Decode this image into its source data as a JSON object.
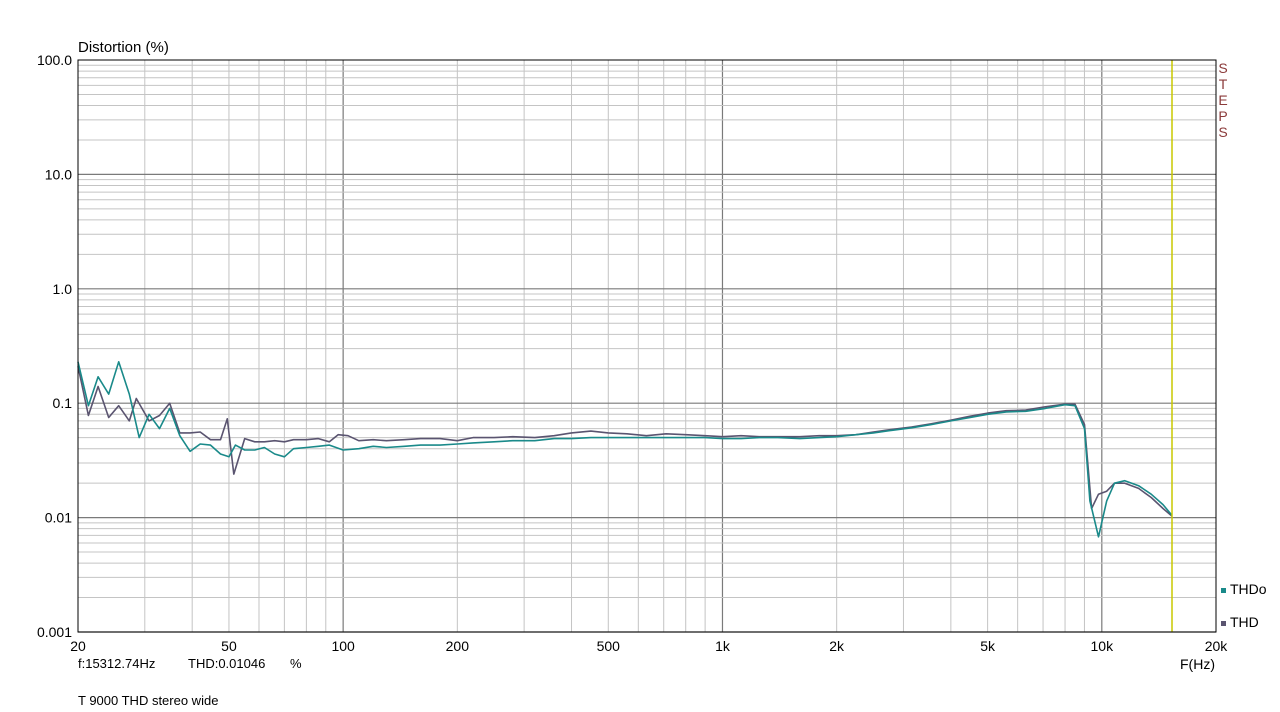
{
  "chart_data": {
    "type": "line",
    "title": "",
    "ylabel": "Distortion (%)",
    "xlabel": "F(Hz)",
    "xscale": "log",
    "yscale": "log",
    "xlim": [
      20,
      20000
    ],
    "ylim": [
      0.001,
      100
    ],
    "grid": true,
    "legend_position": "bottom-right",
    "y_ticks": [
      {
        "value": 0.001,
        "label": "0.001"
      },
      {
        "value": 0.01,
        "label": "0.01"
      },
      {
        "value": 0.1,
        "label": "0.1"
      },
      {
        "value": 1,
        "label": "1.0"
      },
      {
        "value": 10,
        "label": "10.0"
      },
      {
        "value": 100,
        "label": "100.0"
      }
    ],
    "x_ticks": [
      {
        "value": 20,
        "label": "20"
      },
      {
        "value": 50,
        "label": "50"
      },
      {
        "value": 100,
        "label": "100"
      },
      {
        "value": 200,
        "label": "200"
      },
      {
        "value": 500,
        "label": "500"
      },
      {
        "value": 1000,
        "label": "1k"
      },
      {
        "value": 2000,
        "label": "2k"
      },
      {
        "value": 5000,
        "label": "5k"
      },
      {
        "value": 10000,
        "label": "10k"
      },
      {
        "value": 20000,
        "label": "20k"
      }
    ],
    "side_label": [
      "S",
      "T",
      "E",
      "P",
      "S"
    ],
    "cursor": {
      "x": 15312.74,
      "color": "#c8c800"
    },
    "colors": {
      "grid_major": "#7a7a7a",
      "grid_minor": "#c4c4c4",
      "frame": "#000000"
    },
    "series": [
      {
        "name": "THDo",
        "color": "#1a8a8a",
        "points": [
          [
            20,
            0.23
          ],
          [
            21.3,
            0.095
          ],
          [
            22.6,
            0.17
          ],
          [
            24.1,
            0.12
          ],
          [
            25.6,
            0.23
          ],
          [
            27.3,
            0.12
          ],
          [
            29,
            0.05
          ],
          [
            30.8,
            0.08
          ],
          [
            32.8,
            0.06
          ],
          [
            34.9,
            0.09
          ],
          [
            37.1,
            0.052
          ],
          [
            39.5,
            0.038
          ],
          [
            42,
            0.044
          ],
          [
            44.7,
            0.043
          ],
          [
            47.5,
            0.036
          ],
          [
            50,
            0.034
          ],
          [
            52,
            0.043
          ],
          [
            55,
            0.039
          ],
          [
            58.5,
            0.039
          ],
          [
            62,
            0.041
          ],
          [
            66,
            0.036
          ],
          [
            70,
            0.034
          ],
          [
            74,
            0.04
          ],
          [
            80,
            0.041
          ],
          [
            86,
            0.042
          ],
          [
            92,
            0.043
          ],
          [
            100,
            0.039
          ],
          [
            110,
            0.04
          ],
          [
            120,
            0.042
          ],
          [
            130,
            0.041
          ],
          [
            145,
            0.042
          ],
          [
            160,
            0.043
          ],
          [
            180,
            0.043
          ],
          [
            200,
            0.044
          ],
          [
            220,
            0.045
          ],
          [
            250,
            0.046
          ],
          [
            280,
            0.047
          ],
          [
            320,
            0.047
          ],
          [
            360,
            0.049
          ],
          [
            400,
            0.049
          ],
          [
            450,
            0.05
          ],
          [
            500,
            0.05
          ],
          [
            560,
            0.05
          ],
          [
            630,
            0.05
          ],
          [
            710,
            0.05
          ],
          [
            800,
            0.05
          ],
          [
            900,
            0.05
          ],
          [
            1000,
            0.049
          ],
          [
            1120,
            0.049
          ],
          [
            1250,
            0.05
          ],
          [
            1400,
            0.05
          ],
          [
            1600,
            0.049
          ],
          [
            1800,
            0.05
          ],
          [
            2000,
            0.051
          ],
          [
            2250,
            0.053
          ],
          [
            2500,
            0.055
          ],
          [
            2800,
            0.058
          ],
          [
            3150,
            0.061
          ],
          [
            3550,
            0.065
          ],
          [
            4000,
            0.07
          ],
          [
            4500,
            0.075
          ],
          [
            5000,
            0.08
          ],
          [
            5600,
            0.084
          ],
          [
            6300,
            0.085
          ],
          [
            7100,
            0.09
          ],
          [
            8000,
            0.097
          ],
          [
            8500,
            0.095
          ],
          [
            9000,
            0.06
          ],
          [
            9300,
            0.014
          ],
          [
            9800,
            0.0068
          ],
          [
            10300,
            0.014
          ],
          [
            10800,
            0.02
          ],
          [
            11500,
            0.021
          ],
          [
            12500,
            0.019
          ],
          [
            13500,
            0.016
          ],
          [
            14500,
            0.013
          ],
          [
            15312.74,
            0.01046
          ]
        ]
      },
      {
        "name": "THD",
        "color": "#5a5470",
        "points": [
          [
            20,
            0.21
          ],
          [
            21.3,
            0.078
          ],
          [
            22.6,
            0.14
          ],
          [
            24.1,
            0.075
          ],
          [
            25.6,
            0.095
          ],
          [
            27.3,
            0.07
          ],
          [
            28.5,
            0.11
          ],
          [
            30.8,
            0.07
          ],
          [
            32.8,
            0.078
          ],
          [
            34.9,
            0.1
          ],
          [
            37.1,
            0.055
          ],
          [
            39.5,
            0.055
          ],
          [
            42,
            0.056
          ],
          [
            44.7,
            0.048
          ],
          [
            47.5,
            0.048
          ],
          [
            49.5,
            0.073
          ],
          [
            51.5,
            0.024
          ],
          [
            55,
            0.049
          ],
          [
            58.5,
            0.046
          ],
          [
            62,
            0.046
          ],
          [
            66,
            0.047
          ],
          [
            70,
            0.046
          ],
          [
            74,
            0.048
          ],
          [
            80,
            0.048
          ],
          [
            86,
            0.049
          ],
          [
            92,
            0.046
          ],
          [
            97,
            0.053
          ],
          [
            103,
            0.052
          ],
          [
            110,
            0.047
          ],
          [
            120,
            0.048
          ],
          [
            130,
            0.047
          ],
          [
            145,
            0.048
          ],
          [
            160,
            0.049
          ],
          [
            180,
            0.049
          ],
          [
            200,
            0.047
          ],
          [
            220,
            0.05
          ],
          [
            250,
            0.05
          ],
          [
            280,
            0.051
          ],
          [
            320,
            0.05
          ],
          [
            360,
            0.052
          ],
          [
            400,
            0.055
          ],
          [
            450,
            0.057
          ],
          [
            500,
            0.055
          ],
          [
            560,
            0.054
          ],
          [
            630,
            0.052
          ],
          [
            710,
            0.054
          ],
          [
            800,
            0.053
          ],
          [
            900,
            0.052
          ],
          [
            1000,
            0.051
          ],
          [
            1120,
            0.052
          ],
          [
            1250,
            0.051
          ],
          [
            1400,
            0.051
          ],
          [
            1600,
            0.051
          ],
          [
            1800,
            0.052
          ],
          [
            2000,
            0.052
          ],
          [
            2250,
            0.053
          ],
          [
            2500,
            0.056
          ],
          [
            2800,
            0.059
          ],
          [
            3150,
            0.062
          ],
          [
            3550,
            0.066
          ],
          [
            4000,
            0.071
          ],
          [
            4500,
            0.077
          ],
          [
            5000,
            0.082
          ],
          [
            5600,
            0.086
          ],
          [
            6300,
            0.087
          ],
          [
            7100,
            0.093
          ],
          [
            8000,
            0.098
          ],
          [
            8500,
            0.098
          ],
          [
            9000,
            0.065
          ],
          [
            9400,
            0.012
          ],
          [
            9800,
            0.016
          ],
          [
            10300,
            0.017
          ],
          [
            10800,
            0.02
          ],
          [
            11500,
            0.02
          ],
          [
            12500,
            0.018
          ],
          [
            13500,
            0.015
          ],
          [
            14500,
            0.012
          ],
          [
            15312.74,
            0.0103
          ]
        ]
      }
    ]
  },
  "readout": {
    "freq": "f:15312.74Hz",
    "thd": "THD:0.01046",
    "unit": "%"
  },
  "caption": "T 9000 THD stereo wide"
}
